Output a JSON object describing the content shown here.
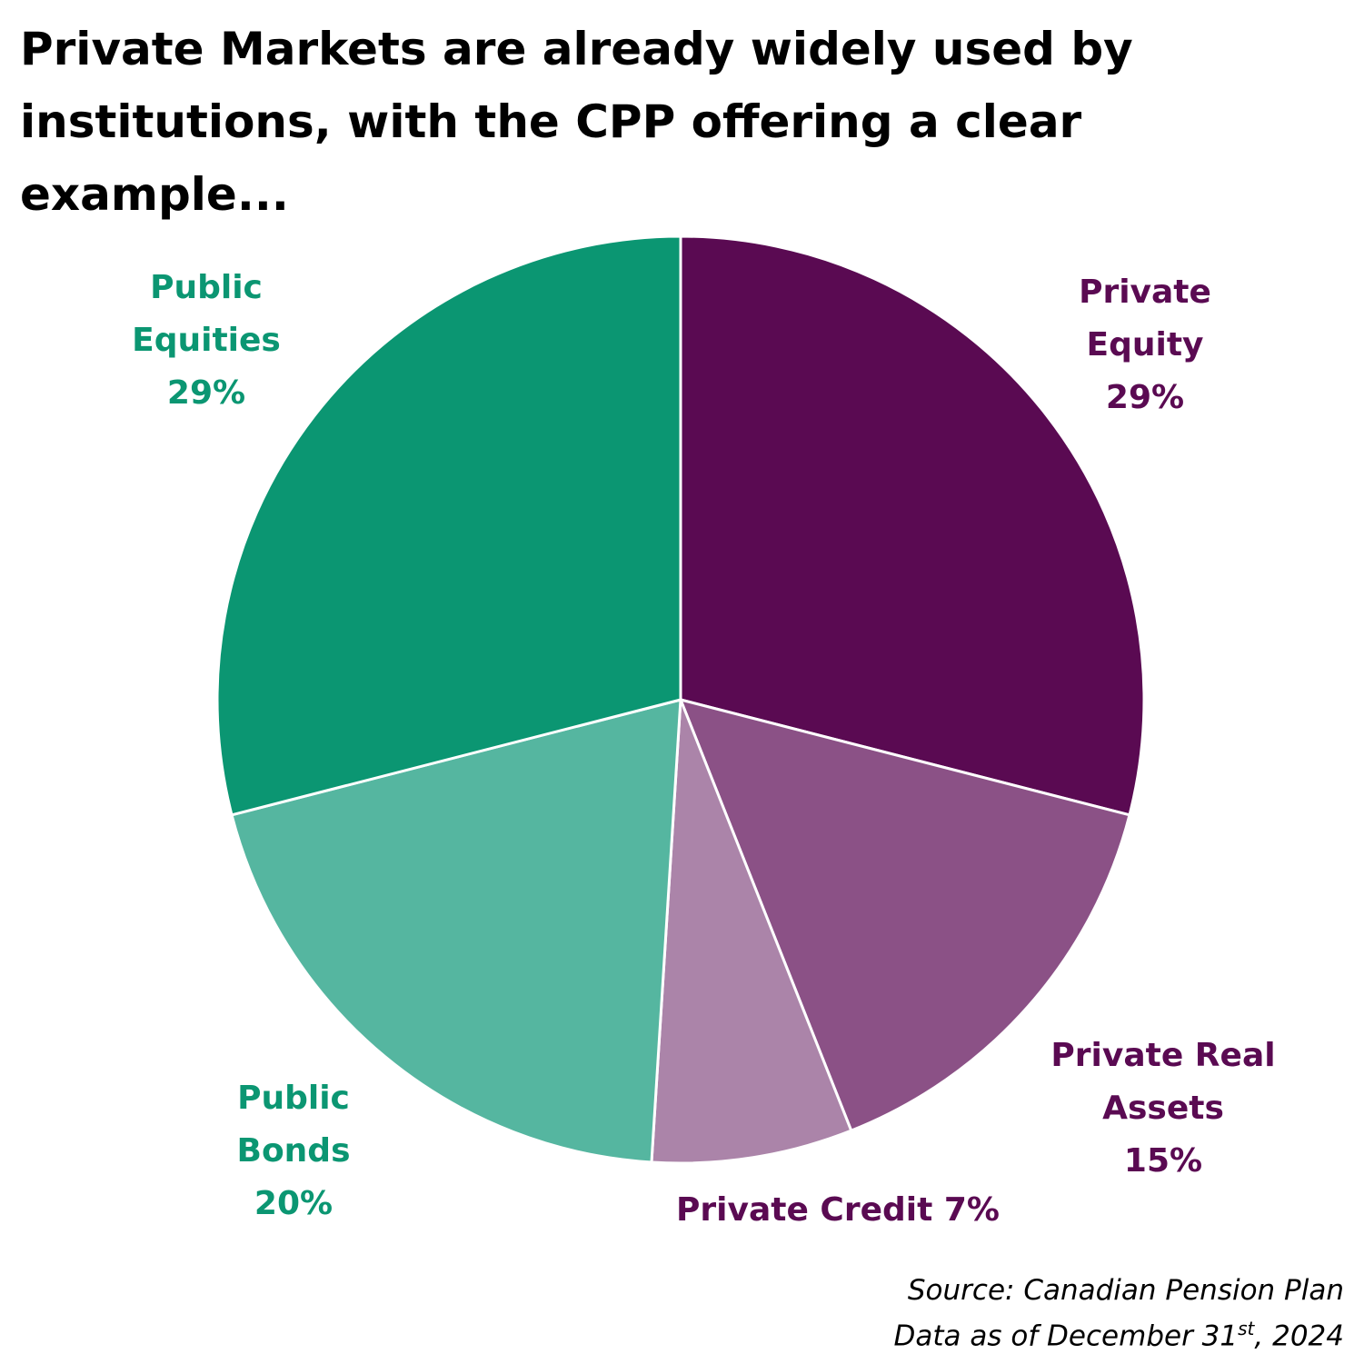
{
  "chart_data": {
    "type": "pie",
    "title": "Private Markets are already widely used by institutions, with the CPP offering a clear example...",
    "categories": [
      "Private Equity",
      "Private Real Assets",
      "Private Credit",
      "Public Bonds",
      "Public Equities"
    ],
    "values": [
      29,
      15,
      7,
      20,
      29
    ],
    "value_labels": [
      "29%",
      "15%",
      "7%",
      "20%",
      "29%"
    ],
    "colors": [
      "#5a0a52",
      "#8b5186",
      "#ab84a9",
      "#55b6a0",
      "#0b9672"
    ],
    "source": "Source: Canadian Pension Plan",
    "date_note": [
      "Data as of December 31",
      "st",
      ", 2024"
    ]
  }
}
